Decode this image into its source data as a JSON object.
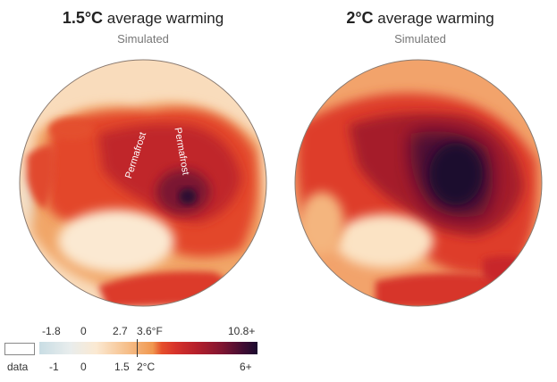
{
  "panels": [
    {
      "title_bold": "1.5°C",
      "title_rest": " average warming",
      "subtitle": "Simulated",
      "annotations": [
        "Permafrost",
        "Permafrost"
      ]
    },
    {
      "title_bold": "2°C",
      "title_rest": " average warming",
      "subtitle": "Simulated"
    }
  ],
  "legend": {
    "fahrenheit_ticks": [
      "-1.8",
      "0",
      "2.7",
      "3.6°F",
      "10.8+"
    ],
    "celsius_ticks": [
      "-1",
      "0",
      "1.5",
      "2°C",
      "6+"
    ],
    "nodata_label": "data"
  },
  "colors": {
    "cool": "#c9dde4",
    "neutral": "#fbe9d2",
    "warm_light": "#f6c08c",
    "warm": "#e6502b",
    "hot": "#b51f2b",
    "hottest": "#1a0a2e"
  }
}
